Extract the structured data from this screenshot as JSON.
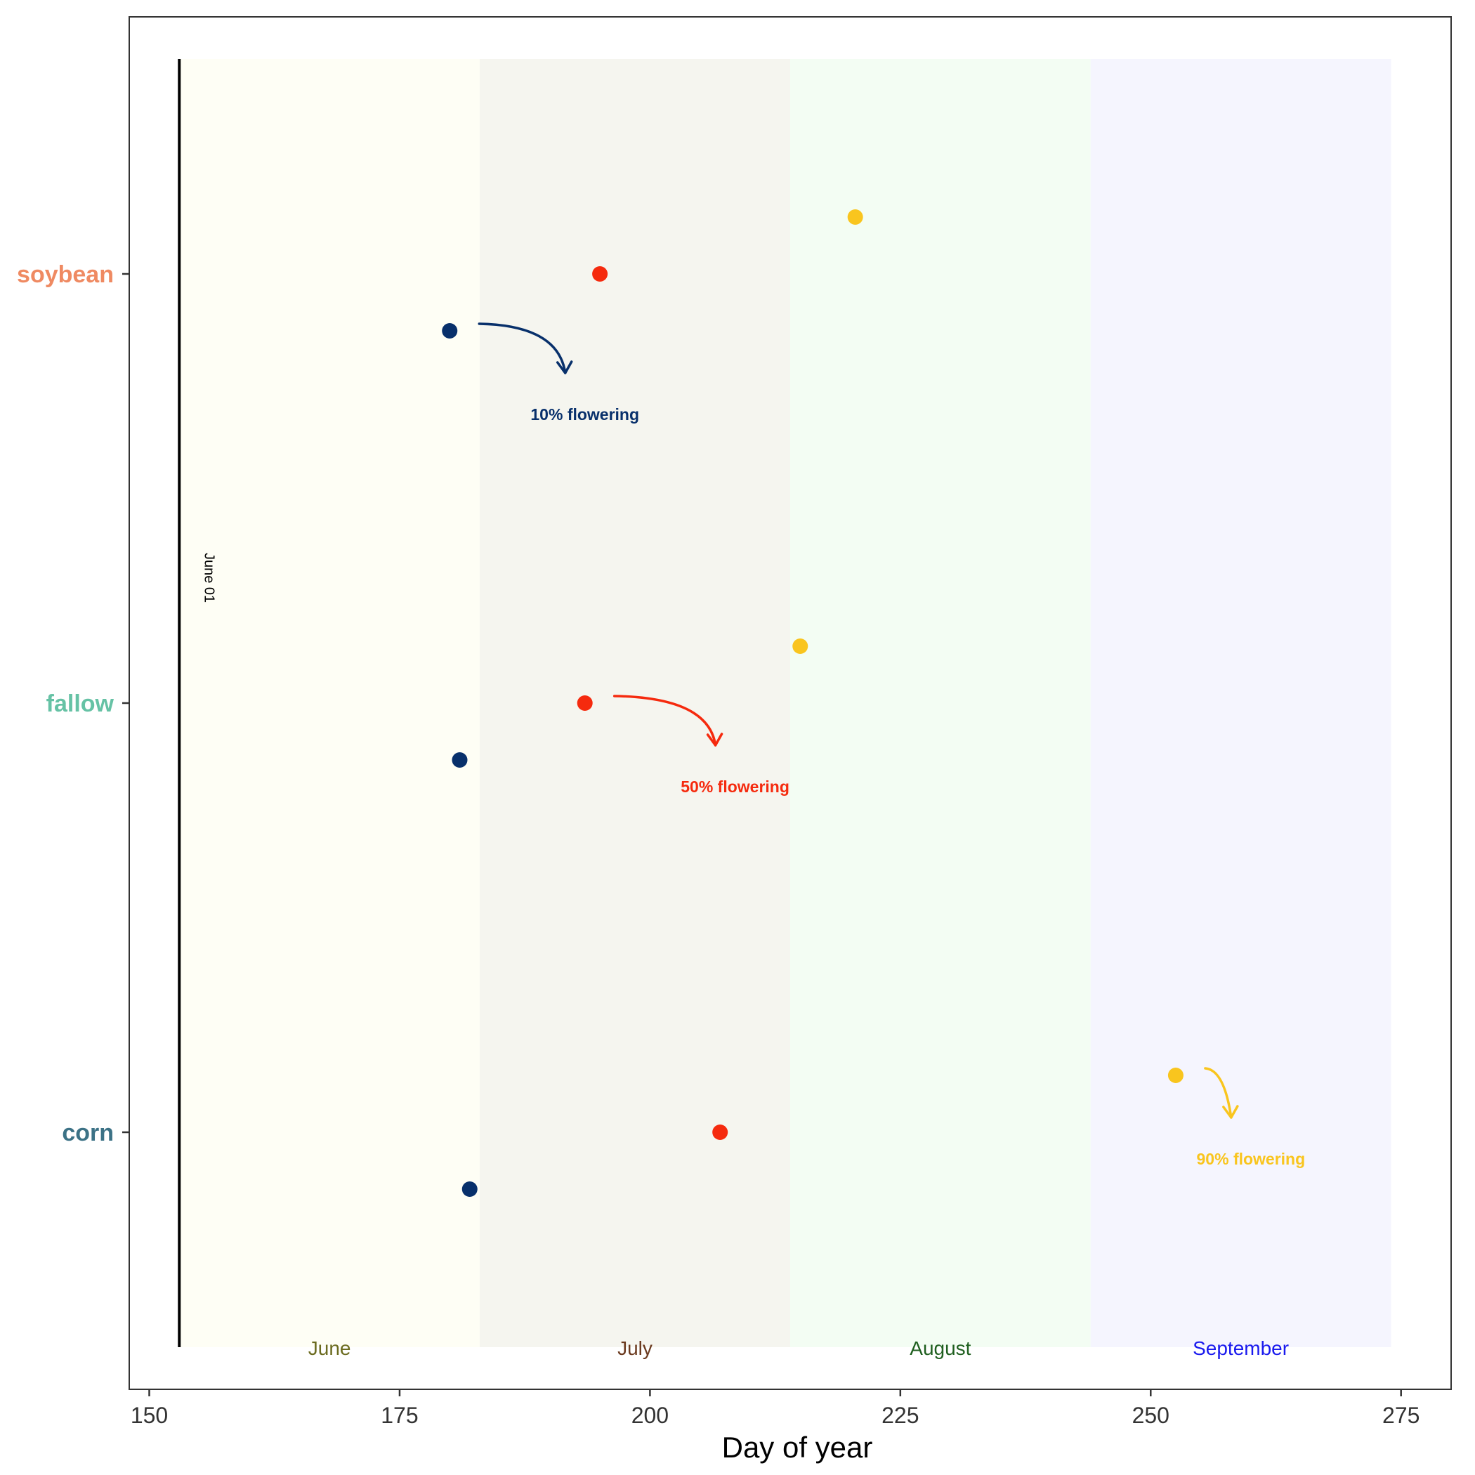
{
  "chart_data": {
    "type": "scatter",
    "xlabel": "Day of year",
    "ylabel": "",
    "xlim": [
      148,
      280
    ],
    "x_ticks": [
      150,
      175,
      200,
      225,
      250,
      275
    ],
    "grid": false,
    "legend": "none",
    "categories": [
      "soybean",
      "fallow",
      "corn"
    ],
    "category_colors": {
      "soybean": "#ef8a62",
      "fallow": "#66c2a5",
      "corn": "#3c7286"
    },
    "month_bands": [
      {
        "label": "June",
        "start": 153,
        "end": 183,
        "fill": "#fefef5",
        "text_color": "#6b6b1f"
      },
      {
        "label": "July",
        "start": 183,
        "end": 214,
        "fill": "#f5f5ef",
        "text_color": "#6b3a1f"
      },
      {
        "label": "August",
        "start": 214,
        "end": 244,
        "fill": "#f3fdf3",
        "text_color": "#1f5f1f"
      },
      {
        "label": "September",
        "start": 244,
        "end": 274,
        "fill": "#f5f5fe",
        "text_color": "#1a1aee"
      }
    ],
    "reference_line": {
      "x": 153,
      "label": "June 01"
    },
    "series": [
      {
        "stage": "10%",
        "color": "#08306b",
        "points": [
          {
            "category": "soybean",
            "x": 180
          },
          {
            "category": "fallow",
            "x": 181
          },
          {
            "category": "corn",
            "x": 182
          }
        ]
      },
      {
        "stage": "50%",
        "color": "#f52a0e",
        "points": [
          {
            "category": "soybean",
            "x": 195
          },
          {
            "category": "fallow",
            "x": 193.5
          },
          {
            "category": "corn",
            "x": 207
          }
        ]
      },
      {
        "stage": "90%",
        "color": "#f9c51e",
        "points": [
          {
            "category": "soybean",
            "x": 220.5
          },
          {
            "category": "fallow",
            "x": 215
          },
          {
            "category": "corn",
            "x": 252.5
          }
        ]
      }
    ],
    "annotations": [
      {
        "text": "10% flowering",
        "color": "#08306b",
        "category": "soybean",
        "stage": "10%",
        "label_x": 193.5
      },
      {
        "text": "50% flowering",
        "color": "#f52a0e",
        "category": "fallow",
        "stage": "50%",
        "label_x": 208.5
      },
      {
        "text": "90% flowering",
        "color": "#f9c51e",
        "category": "corn",
        "stage": "90%",
        "label_x": 260
      }
    ]
  }
}
